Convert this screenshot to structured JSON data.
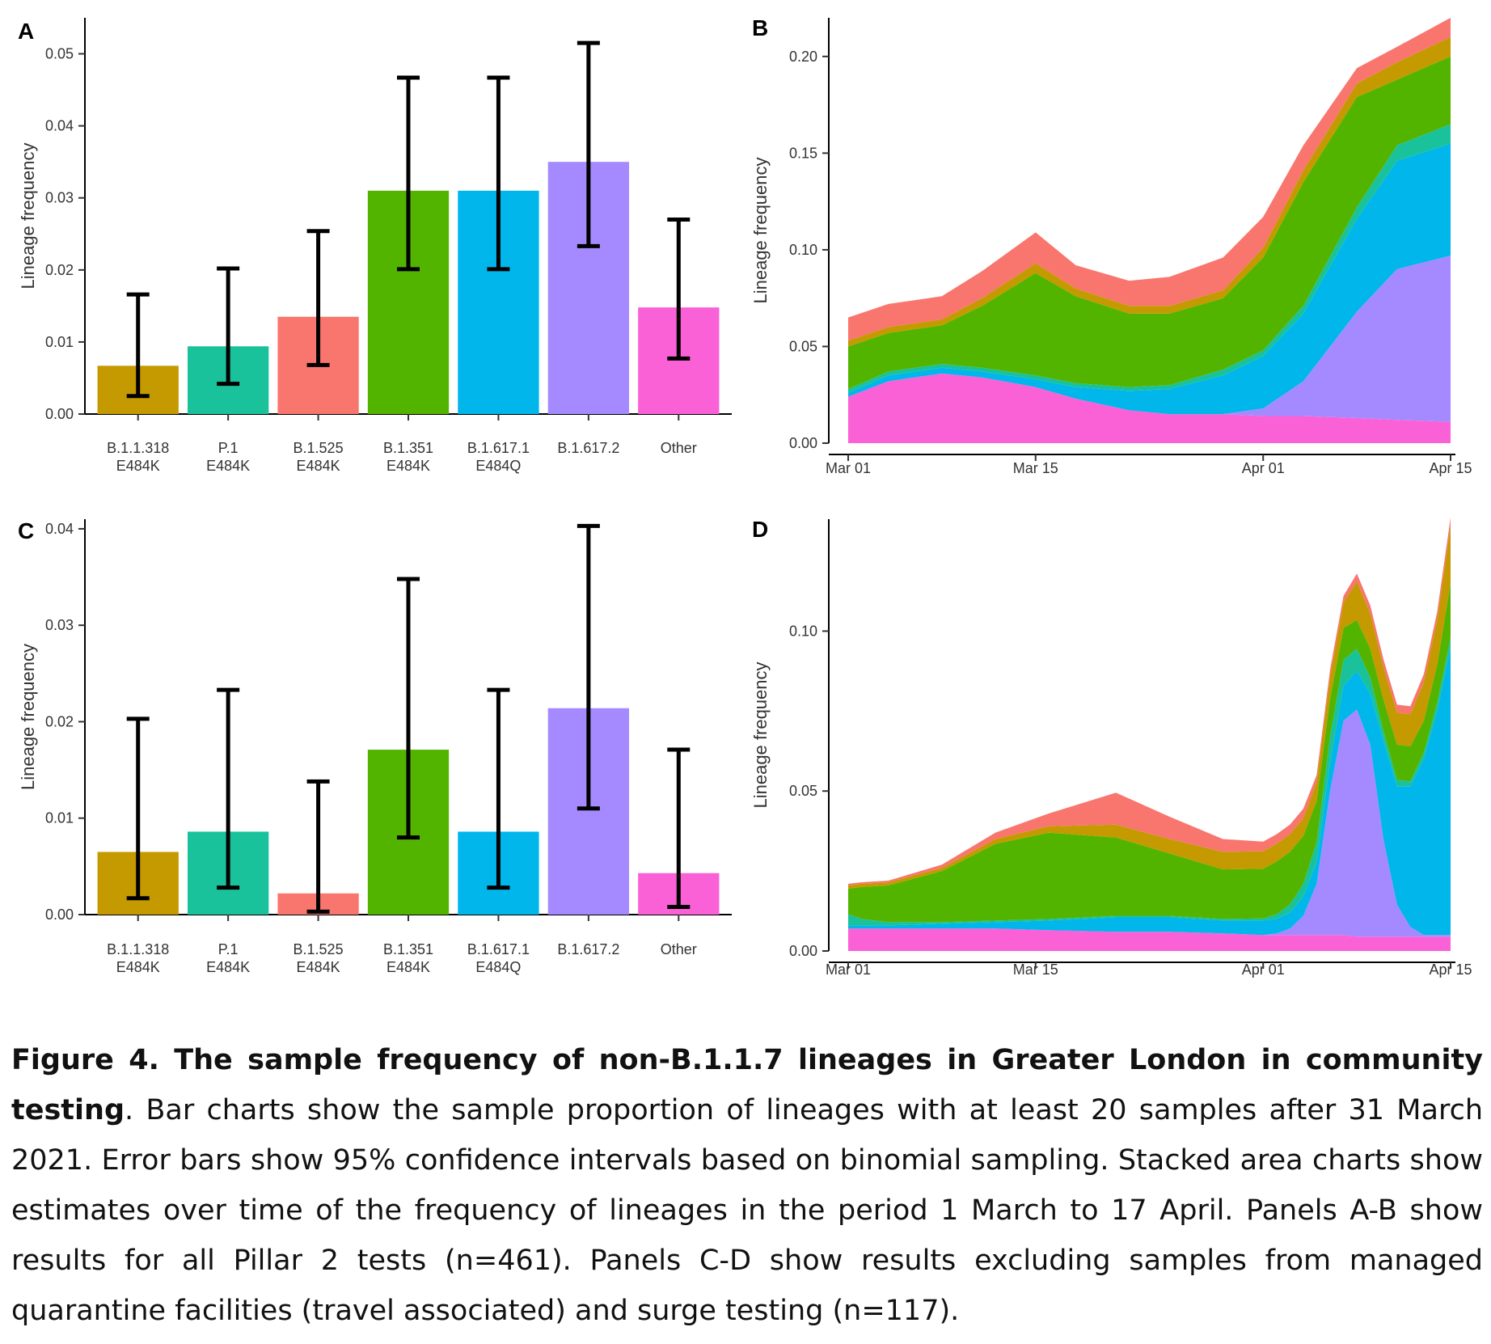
{
  "chart_data": [
    {
      "panel": "A",
      "type": "bar",
      "ylabel": "Lineage frequency",
      "ylim": [
        0,
        0.055
      ],
      "yticks": [
        "0.00",
        "0.01",
        "0.02",
        "0.03",
        "0.04",
        "0.05"
      ],
      "categories": [
        [
          "B.1.1.318",
          "E484K"
        ],
        [
          "P.1",
          "E484K"
        ],
        [
          "B.1.525",
          "E484K"
        ],
        [
          "B.1.351",
          "E484K"
        ],
        [
          "B.1.617.1",
          "E484Q"
        ],
        [
          "B.1.617.2"
        ],
        [
          "Other"
        ]
      ],
      "values": [
        0.0067,
        0.0094,
        0.0135,
        0.031,
        0.031,
        0.035,
        0.0148
      ],
      "ci_low": [
        0.0025,
        0.0042,
        0.0068,
        0.0201,
        0.0201,
        0.0233,
        0.0077
      ],
      "ci_high": [
        0.0166,
        0.0202,
        0.0254,
        0.0467,
        0.0467,
        0.0515,
        0.027
      ],
      "colors": [
        "#C49A00",
        "#19C29B",
        "#F8766D",
        "#53B400",
        "#00B6EB",
        "#A58AFF",
        "#FB61D7"
      ]
    },
    {
      "panel": "B",
      "type": "area",
      "ylabel": "Lineage frequency",
      "ylim": [
        0,
        0.22
      ],
      "yticks": [
        "0.00",
        "0.05",
        "0.10",
        "0.15",
        "0.20"
      ],
      "xticks": [
        "Mar 01",
        "Mar 15",
        "Apr 01",
        "Apr 15"
      ],
      "x": [
        "2021-03-01",
        "2021-03-04",
        "2021-03-08",
        "2021-03-11",
        "2021-03-15",
        "2021-03-18",
        "2021-03-22",
        "2021-03-25",
        "2021-03-29",
        "2021-04-01",
        "2021-04-04",
        "2021-04-08",
        "2021-04-11",
        "2021-04-15"
      ],
      "series": [
        {
          "values": [
            0.024,
            0.032,
            0.036,
            0.034,
            0.029,
            0.023,
            0.017,
            0.015,
            0.015,
            0.014,
            0.014,
            0.013,
            0.012,
            0.011
          ]
        },
        {
          "values": [
            0.0,
            0.0,
            0.0,
            0.0,
            0.0,
            0.0,
            0.0,
            0.0,
            0.0,
            0.004,
            0.018,
            0.055,
            0.078,
            0.086
          ]
        },
        {
          "values": [
            0.002,
            0.003,
            0.003,
            0.003,
            0.004,
            0.006,
            0.01,
            0.013,
            0.02,
            0.027,
            0.035,
            0.048,
            0.056,
            0.058
          ]
        },
        {
          "values": [
            0.002,
            0.002,
            0.002,
            0.002,
            0.002,
            0.002,
            0.002,
            0.002,
            0.003,
            0.003,
            0.004,
            0.006,
            0.008,
            0.01
          ]
        },
        {
          "values": [
            0.022,
            0.02,
            0.02,
            0.032,
            0.053,
            0.045,
            0.038,
            0.037,
            0.037,
            0.048,
            0.064,
            0.057,
            0.034,
            0.035
          ]
        },
        {
          "values": [
            0.003,
            0.003,
            0.003,
            0.004,
            0.005,
            0.004,
            0.004,
            0.004,
            0.004,
            0.005,
            0.006,
            0.007,
            0.009,
            0.01
          ]
        },
        {
          "values": [
            0.012,
            0.012,
            0.012,
            0.014,
            0.016,
            0.012,
            0.013,
            0.015,
            0.017,
            0.016,
            0.013,
            0.008,
            0.008,
            0.01
          ]
        }
      ],
      "colors": [
        "#FB61D7",
        "#A58AFF",
        "#00B6EB",
        "#19C29B",
        "#53B400",
        "#C49A00",
        "#F8766D"
      ]
    },
    {
      "panel": "C",
      "type": "bar",
      "ylabel": "Lineage frequency",
      "ylim": [
        0,
        0.041
      ],
      "yticks": [
        "0.00",
        "0.01",
        "0.02",
        "0.03",
        "0.04"
      ],
      "categories": [
        [
          "B.1.1.318",
          "E484K"
        ],
        [
          "P.1",
          "E484K"
        ],
        [
          "B.1.525",
          "E484K"
        ],
        [
          "B.1.351",
          "E484K"
        ],
        [
          "B.1.617.1",
          "E484Q"
        ],
        [
          "B.1.617.2"
        ],
        [
          "Other"
        ]
      ],
      "values": [
        0.0065,
        0.0086,
        0.0022,
        0.0171,
        0.0086,
        0.0214,
        0.0043
      ],
      "ci_low": [
        0.0017,
        0.0028,
        0.0003,
        0.008,
        0.0028,
        0.011,
        0.0008
      ],
      "ci_high": [
        0.0203,
        0.0233,
        0.0138,
        0.0348,
        0.0233,
        0.0403,
        0.0171
      ],
      "colors": [
        "#C49A00",
        "#19C29B",
        "#F8766D",
        "#53B400",
        "#00B6EB",
        "#A58AFF",
        "#FB61D7"
      ]
    },
    {
      "panel": "D",
      "type": "area",
      "ylabel": "Lineage frequency",
      "ylim": [
        0,
        0.135
      ],
      "yticks": [
        "0.00",
        "0.05",
        "0.10"
      ],
      "xticks": [
        "Mar 01",
        "Mar 15",
        "Apr 01",
        "Apr 15"
      ],
      "x": [
        "2021-03-01",
        "2021-03-02",
        "2021-03-04",
        "2021-03-08",
        "2021-03-12",
        "2021-03-16",
        "2021-03-21",
        "2021-03-25",
        "2021-03-29",
        "2021-04-01",
        "2021-04-02",
        "2021-04-03",
        "2021-04-04",
        "2021-04-05",
        "2021-04-06",
        "2021-04-07",
        "2021-04-08",
        "2021-04-09",
        "2021-04-10",
        "2021-04-11",
        "2021-04-12",
        "2021-04-13",
        "2021-04-14",
        "2021-04-15"
      ],
      "series": [
        {
          "values": [
            0.007,
            0.007,
            0.007,
            0.007,
            0.007,
            0.0065,
            0.006,
            0.006,
            0.0055,
            0.005,
            0.005,
            0.005,
            0.005,
            0.005,
            0.005,
            0.005,
            0.0045,
            0.0045,
            0.0045,
            0.0045,
            0.0045,
            0.0045,
            0.0045,
            0.0045
          ]
        },
        {
          "values": [
            0.0,
            0.0,
            0.0,
            0.0,
            0.0,
            0.0,
            0.0,
            0.0,
            0.0,
            0.0,
            0.0005,
            0.002,
            0.006,
            0.016,
            0.045,
            0.067,
            0.071,
            0.06,
            0.03,
            0.01,
            0.003,
            0.0005,
            0.0005,
            0.0005
          ]
        },
        {
          "values": [
            0.001,
            0.001,
            0.001,
            0.0015,
            0.002,
            0.003,
            0.0045,
            0.0045,
            0.004,
            0.0045,
            0.0045,
            0.005,
            0.006,
            0.007,
            0.009,
            0.011,
            0.012,
            0.016,
            0.031,
            0.037,
            0.044,
            0.055,
            0.07,
            0.09
          ]
        },
        {
          "values": [
            0.0035,
            0.002,
            0.001,
            0.0005,
            0.0005,
            0.0005,
            0.0005,
            0.0005,
            0.0005,
            0.0007,
            0.0015,
            0.0025,
            0.004,
            0.006,
            0.008,
            0.008,
            0.007,
            0.005,
            0.003,
            0.002,
            0.0015,
            0.002,
            0.0025,
            0.003
          ]
        },
        {
          "values": [
            0.008,
            0.01,
            0.0115,
            0.016,
            0.024,
            0.027,
            0.0245,
            0.0195,
            0.0155,
            0.0155,
            0.0165,
            0.0165,
            0.015,
            0.013,
            0.012,
            0.01,
            0.009,
            0.009,
            0.01,
            0.011,
            0.011,
            0.01,
            0.012,
            0.017
          ]
        },
        {
          "values": [
            0.001,
            0.001,
            0.001,
            0.001,
            0.0015,
            0.002,
            0.004,
            0.0045,
            0.0055,
            0.0055,
            0.0055,
            0.0055,
            0.0055,
            0.006,
            0.007,
            0.008,
            0.012,
            0.011,
            0.01,
            0.01,
            0.01,
            0.012,
            0.014,
            0.018
          ]
        },
        {
          "values": [
            0.0005,
            0.0005,
            0.0005,
            0.001,
            0.002,
            0.004,
            0.01,
            0.007,
            0.004,
            0.003,
            0.003,
            0.003,
            0.003,
            0.002,
            0.002,
            0.002,
            0.0025,
            0.0025,
            0.0025,
            0.0025,
            0.0025,
            0.0025,
            0.0025,
            0.0025
          ]
        }
      ],
      "colors": [
        "#FB61D7",
        "#A58AFF",
        "#00B6EB",
        "#19C29B",
        "#53B400",
        "#C49A00",
        "#F8766D"
      ]
    }
  ],
  "caption": {
    "bold": "Figure 4. The sample frequency of non-B.1.1.7 lineages in Greater London in community testing",
    "text": ". Bar charts show the sample proportion of lineages with at least 20 samples after 31 March 2021. Error bars show 95% confidence intervals based on binomial sampling. Stacked area charts show estimates over time of the frequency of lineages in the period 1 March to 17 April.  Panels A-B show results for all Pillar 2 tests (n=461). Panels C-D show results excluding samples from managed quarantine facilities (travel associated) and surge testing (n=117)."
  }
}
